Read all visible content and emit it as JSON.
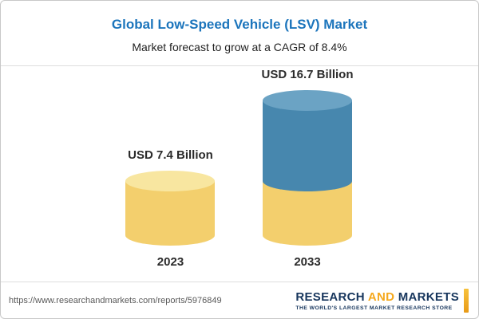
{
  "header": {
    "title": "Global Low-Speed Vehicle (LSV) Market",
    "subtitle": "Market forecast to grow at a CAGR of 8.4%"
  },
  "chart_data": {
    "type": "bar",
    "subtype": "3d-cylinder",
    "categories": [
      "2023",
      "2033"
    ],
    "values": [
      7.4,
      16.7
    ],
    "value_labels": [
      "USD 7.4 Billion",
      "USD 16.7 Billion"
    ],
    "unit": "USD Billion",
    "cagr": "8.4%",
    "ylim": [
      0,
      16.7
    ],
    "grid": false,
    "legend": null,
    "colors": {
      "bar_2023": "#f3cf6d",
      "bar_2033_bottom_segment": "#f3cf6d",
      "bar_2033_top_segment": "#4787ae"
    }
  },
  "footer": {
    "url": "https://www.researchandmarkets.com/reports/5976849",
    "logo": {
      "word1": "RESEARCH",
      "word2": "AND",
      "word3": "MARKETS",
      "tagline": "THE WORLD'S LARGEST MARKET RESEARCH STORE"
    }
  },
  "colors": {
    "title_blue": "#1c75bc",
    "logo_navy": "#17365d",
    "logo_orange": "#f5a81c"
  }
}
